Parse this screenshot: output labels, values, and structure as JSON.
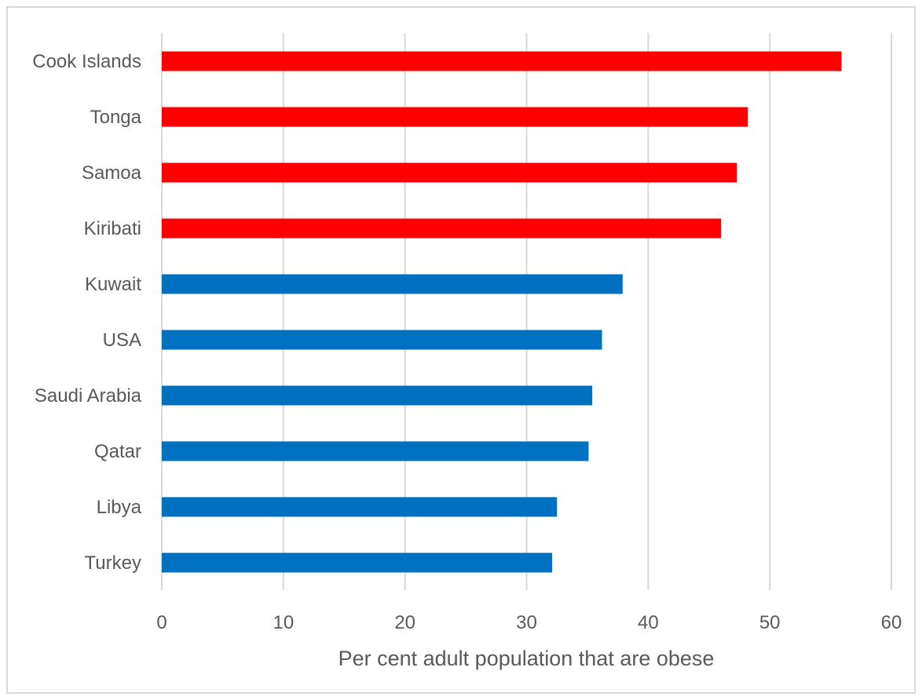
{
  "chart_data": {
    "type": "bar",
    "orientation": "horizontal",
    "categories": [
      "Cook Islands",
      "Tonga",
      "Samoa",
      "Kiribati",
      "Kuwait",
      "USA",
      "Saudi Arabia",
      "Qatar",
      "Libya",
      "Turkey"
    ],
    "values": [
      55.9,
      48.2,
      47.3,
      46.0,
      37.9,
      36.2,
      35.4,
      35.1,
      32.5,
      32.1
    ],
    "bar_colors": [
      "#ff0000",
      "#ff0000",
      "#ff0000",
      "#ff0000",
      "#0070c0",
      "#0070c0",
      "#0070c0",
      "#0070c0",
      "#0070c0",
      "#0070c0"
    ],
    "title": "",
    "xlabel": "Per cent adult population that are obese",
    "ylabel": "",
    "xlim": [
      0,
      60
    ],
    "xticks": [
      0,
      10,
      20,
      30,
      40,
      50,
      60
    ],
    "grid": "vertical",
    "legend": "none"
  }
}
